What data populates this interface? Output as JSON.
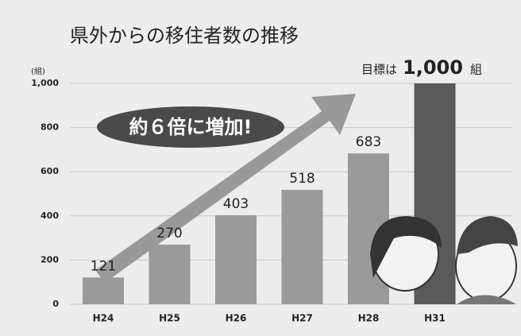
{
  "chart_data": {
    "type": "bar",
    "title": "県外からの移住者数の推移",
    "y_unit": "(組)",
    "categories": [
      "H24",
      "H25",
      "H26",
      "H27",
      "H28",
      "H31"
    ],
    "values": [
      121,
      270,
      403,
      518,
      683,
      1000
    ],
    "value_labels": [
      "121",
      "270",
      "403",
      "518",
      "683",
      null
    ],
    "colors": [
      "#9a9a9a",
      "#9a9a9a",
      "#9a9a9a",
      "#9a9a9a",
      "#9a9a9a",
      "#5a5a5a"
    ],
    "ylim": [
      0,
      1000
    ],
    "yticks": [
      0,
      200,
      400,
      600,
      800,
      {
        "value": 1000,
        "label": "1,000"
      }
    ],
    "grid": true,
    "annotations": {
      "growth": "約６倍に増加!",
      "target_prefix": "目標は",
      "target_value": "1,000",
      "target_unit": "組"
    }
  }
}
